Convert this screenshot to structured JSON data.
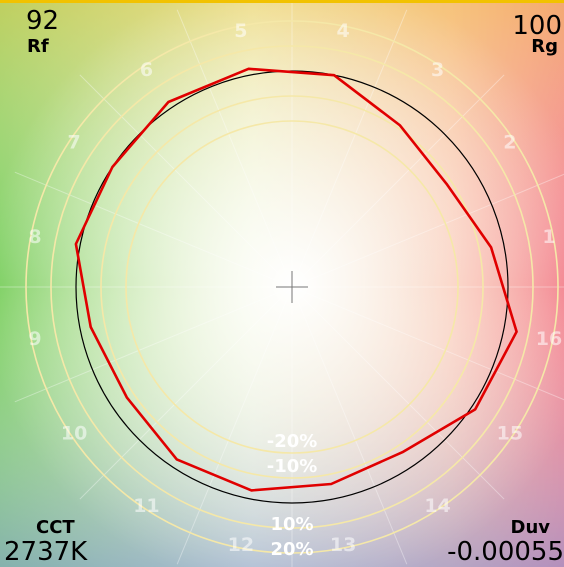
{
  "metrics": {
    "rf_value": "92",
    "rf_label": "Rf",
    "rg_value": "100",
    "rg_label": "Rg",
    "cct_label": "CCT",
    "cct_value": "2737K",
    "duv_label": "Duv",
    "duv_value": "-0.00055"
  },
  "chart_data": {
    "type": "color-vector-graphic",
    "hue_bins": [
      "1",
      "2",
      "3",
      "4",
      "5",
      "6",
      "7",
      "8",
      "9",
      "10",
      "11",
      "12",
      "13",
      "14",
      "15",
      "16"
    ],
    "ring_labels": [
      "-20%",
      "-10%",
      "10%",
      "20%"
    ],
    "ring_values": [
      -20,
      -10,
      10,
      20
    ],
    "reference_circle": 0,
    "test_chroma_shift_percent": [
      -0.06,
      -0.14,
      -0.1,
      0.0,
      0.03,
      0.03,
      0.0,
      0.02,
      -0.05,
      -0.08,
      -0.04,
      -0.04,
      -0.07,
      -0.08,
      0.02,
      0.06
    ],
    "colors": {
      "test_curve": "#e00000",
      "reference_circle": "#000000",
      "rings": "#f5e8a8"
    }
  }
}
